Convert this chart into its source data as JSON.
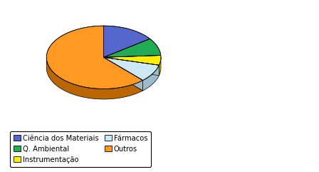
{
  "labels": [
    "Ciência dos Materiais",
    "Q. Ambiental",
    "Instrumentação",
    "Fármacos",
    "Outros"
  ],
  "values": [
    15,
    9,
    5,
    9,
    62
  ],
  "colors_top": [
    "#5566cc",
    "#22aa55",
    "#ffee00",
    "#cce8f4",
    "#ff9922"
  ],
  "colors_side": [
    "#445599",
    "#117733",
    "#ccbb00",
    "#99bbcc",
    "#bb6600"
  ],
  "startangle_deg": 90,
  "legend_labels_col1": [
    "Ciência dos Materiais",
    "Instrumentação",
    "Outros"
  ],
  "legend_labels_col2": [
    "Q. Ambiental",
    "Fármacos"
  ],
  "legend_colors_col1": [
    "#5566cc",
    "#ffee00",
    "#ff9922"
  ],
  "legend_colors_col2": [
    "#22aa55",
    "#cce8f4"
  ],
  "background_color": "#ffffff"
}
